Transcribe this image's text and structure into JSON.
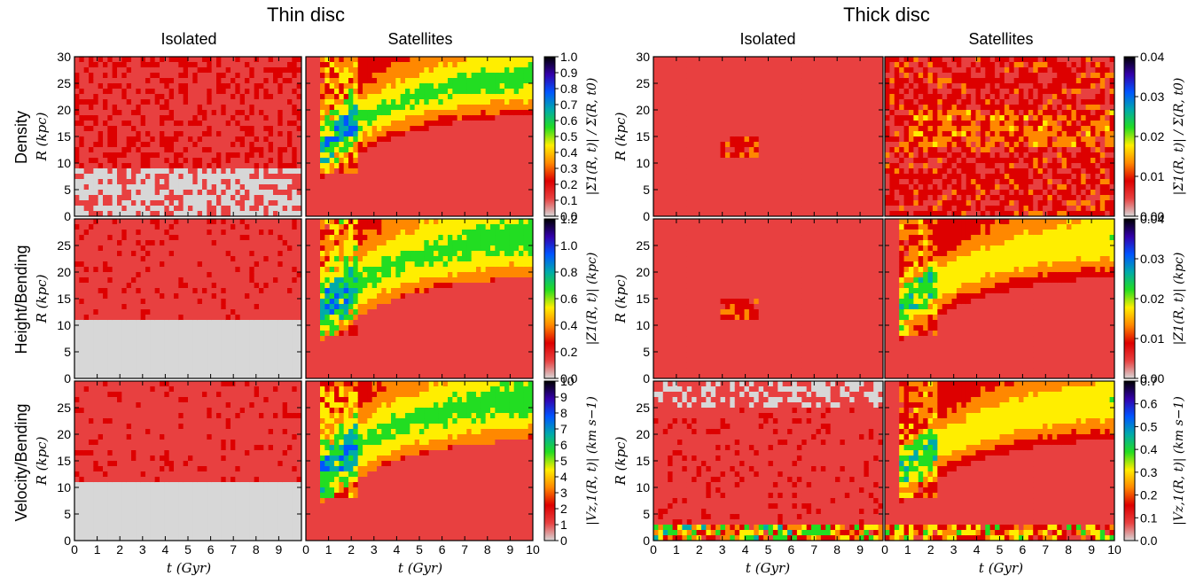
{
  "chart_data": {
    "type": "heatmap",
    "figure_groups": [
      {
        "id": "thin",
        "title": "Thin disc",
        "columns": [
          "Isolated",
          "Satellites"
        ]
      },
      {
        "id": "thick",
        "title": "Thick disc",
        "columns": [
          "Isolated",
          "Satellites"
        ]
      }
    ],
    "row_labels": [
      "Density",
      "Height/Bending",
      "Velocity/Bending"
    ],
    "xlabel": "t (Gyr)",
    "ylabel": "R (kpc)",
    "xlim": [
      0,
      10
    ],
    "ylim": [
      0,
      30
    ],
    "x_ticks": [
      "0",
      "1",
      "2",
      "3",
      "4",
      "5",
      "6",
      "7",
      "8",
      "9",
      "10"
    ],
    "x_ticks_first_panel": [
      "0",
      "1",
      "2",
      "3",
      "4",
      "5",
      "6",
      "7",
      "8",
      "9"
    ],
    "y_ticks_top": [
      "0",
      "5",
      "10",
      "15",
      "20",
      "25",
      "30"
    ],
    "y_ticks_other": [
      "0",
      "5",
      "10",
      "15",
      "20",
      "25"
    ],
    "colormap": [
      "#d7d7d7",
      "#e84040",
      "#dd0000",
      "#ff8800",
      "#ffee00",
      "#22dd22",
      "#00aaaa",
      "#0055ff",
      "#3300aa",
      "#000000"
    ],
    "colorbars": {
      "thin": [
        {
          "label": "|Σ1(R, t)| / Σ(R, t0)",
          "ticks": [
            "0.0",
            "0.1",
            "0.2",
            "0.3",
            "0.4",
            "0.5",
            "0.6",
            "0.7",
            "0.8",
            "0.9",
            "1.0"
          ],
          "vmin": 0.0,
          "vmax": 1.0
        },
        {
          "label": "|Z1(R, t)| (kpc)",
          "ticks": [
            "0.0",
            "0.2",
            "0.4",
            "0.6",
            "0.8",
            "1.0",
            "1.2"
          ],
          "vmin": 0.0,
          "vmax": 1.2
        },
        {
          "label": "|Vz,1(R, t)| (km s−1)",
          "ticks": [
            "0",
            "1",
            "2",
            "3",
            "4",
            "5",
            "6",
            "7",
            "8",
            "9",
            "10"
          ],
          "vmin": 0,
          "vmax": 10
        }
      ],
      "thick": [
        {
          "label": "|Σ1(R, t)| / Σ(R, t0)",
          "ticks": [
            "0.00",
            "0.01",
            "0.02",
            "0.03",
            "0.04"
          ],
          "vmin": 0.0,
          "vmax": 0.04
        },
        {
          "label": "|Z1(R, t)| (kpc)",
          "ticks": [
            "0.00",
            "0.01",
            "0.02",
            "0.03",
            "0.04"
          ],
          "vmin": 0.0,
          "vmax": 0.04
        },
        {
          "label": "|Vz,1(R, t)| (km s−1)",
          "ticks": [
            "0.0",
            "0.1",
            "0.2",
            "0.3",
            "0.4",
            "0.5",
            "0.6",
            "0.7"
          ],
          "vmin": 0.0,
          "vmax": 0.7
        }
      ]
    }
  }
}
